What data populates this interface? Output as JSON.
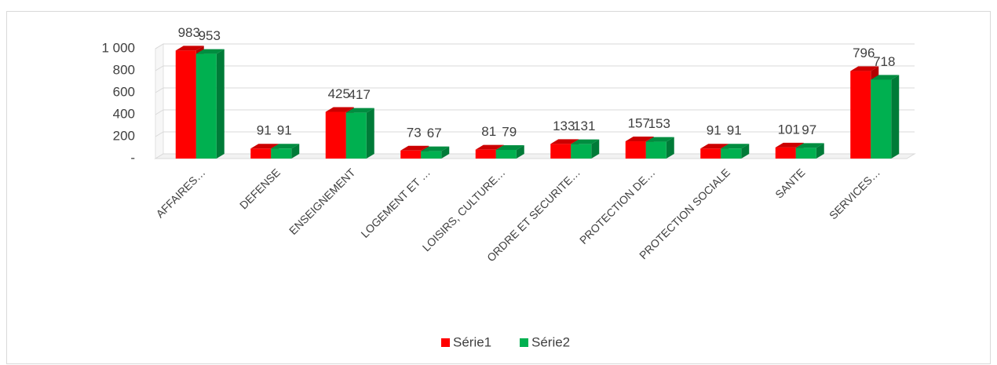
{
  "chart_data": {
    "type": "bar3d",
    "categories": [
      "AFFAIRES…",
      "DEFENSE",
      "ENSEIGNEMENT",
      "LOGEMENT ET …",
      "LOISIRS, CULTURE…",
      "ORDRE ET SECURITE…",
      "PROTECTION DE…",
      "PROTECTION SOCIALE",
      "SANTE",
      "SERVICES…"
    ],
    "series": [
      {
        "name": "Série1",
        "color": "#ff0000",
        "values": [
          983,
          91,
          425,
          73,
          81,
          133,
          157,
          91,
          101,
          796
        ]
      },
      {
        "name": "Série2",
        "color": "#00b050",
        "values": [
          953,
          91,
          417,
          67,
          79,
          131,
          153,
          91,
          97,
          718
        ]
      }
    ],
    "ylim": [
      0,
      1000
    ],
    "yticks": [
      {
        "value": 0,
        "label": "-"
      },
      200,
      400,
      600,
      800,
      {
        "value": 1000,
        "label": "1 000"
      }
    ],
    "grid": true,
    "legend": "bottom"
  }
}
